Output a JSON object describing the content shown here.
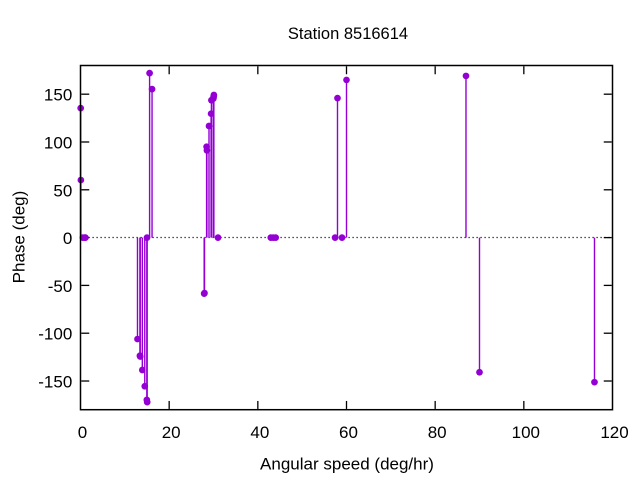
{
  "chart_data": {
    "type": "stem",
    "title": "Station 8516614",
    "xlabel": "Angular speed (deg/hr)",
    "ylabel": "Phase (deg)",
    "xlim": [
      0,
      120
    ],
    "ylim": [
      -180,
      180
    ],
    "xticks": [
      0,
      20,
      40,
      60,
      80,
      100,
      120
    ],
    "yticks": [
      -150,
      -100,
      -50,
      0,
      50,
      100,
      150
    ],
    "grid": false,
    "legend": "none",
    "zero_line_style": "dotted",
    "tick_direction": "in",
    "tick_mirror": true,
    "series_color": "#9400d3",
    "border_color": "#000000",
    "background_color": "#ffffff",
    "marker": "filled-circle",
    "points": [
      {
        "x": 0.0411,
        "y": 135.4
      },
      {
        "x": 0.0821,
        "y": 60.2
      },
      {
        "x": 0.5444,
        "y": 0.0
      },
      {
        "x": 1.0159,
        "y": 0.0
      },
      {
        "x": 1.098,
        "y": 0.0
      },
      {
        "x": 12.8543,
        "y": -106.1
      },
      {
        "x": 13.3987,
        "y": -123.6
      },
      {
        "x": 13.4715,
        "y": -124.4
      },
      {
        "x": 13.943,
        "y": -138.5
      },
      {
        "x": 14.4967,
        "y": -155.5
      },
      {
        "x": 14.9589,
        "y": -169.7
      },
      {
        "x": 15.0,
        "y": 0.0
      },
      {
        "x": 15.0411,
        "y": -172.1
      },
      {
        "x": 15.5854,
        "y": 172.0
      },
      {
        "x": 16.1391,
        "y": 155.3
      },
      {
        "x": 27.8954,
        "y": -58.6
      },
      {
        "x": 27.9682,
        "y": -58.0
      },
      {
        "x": 28.4397,
        "y": 95.0
      },
      {
        "x": 28.5126,
        "y": 91.2
      },
      {
        "x": 28.9841,
        "y": 116.7
      },
      {
        "x": 29.4556,
        "y": 129.6
      },
      {
        "x": 29.5285,
        "y": 143.7
      },
      {
        "x": 29.9589,
        "y": 145.3
      },
      {
        "x": 30.0,
        "y": 146.6
      },
      {
        "x": 30.0411,
        "y": 147.9
      },
      {
        "x": 30.0821,
        "y": 149.2
      },
      {
        "x": 31.0159,
        "y": 0.0
      },
      {
        "x": 42.9271,
        "y": 0.0
      },
      {
        "x": 43.4762,
        "y": 0.0
      },
      {
        "x": 44.0252,
        "y": 0.0
      },
      {
        "x": 57.4238,
        "y": 0.0
      },
      {
        "x": 57.9682,
        "y": 145.9
      },
      {
        "x": 58.9841,
        "y": 0.0
      },
      {
        "x": 60.0,
        "y": 164.9
      },
      {
        "x": 86.9523,
        "y": 169.1
      },
      {
        "x": 90.0,
        "y": -140.8
      },
      {
        "x": 115.9364,
        "y": -151.2
      }
    ]
  }
}
